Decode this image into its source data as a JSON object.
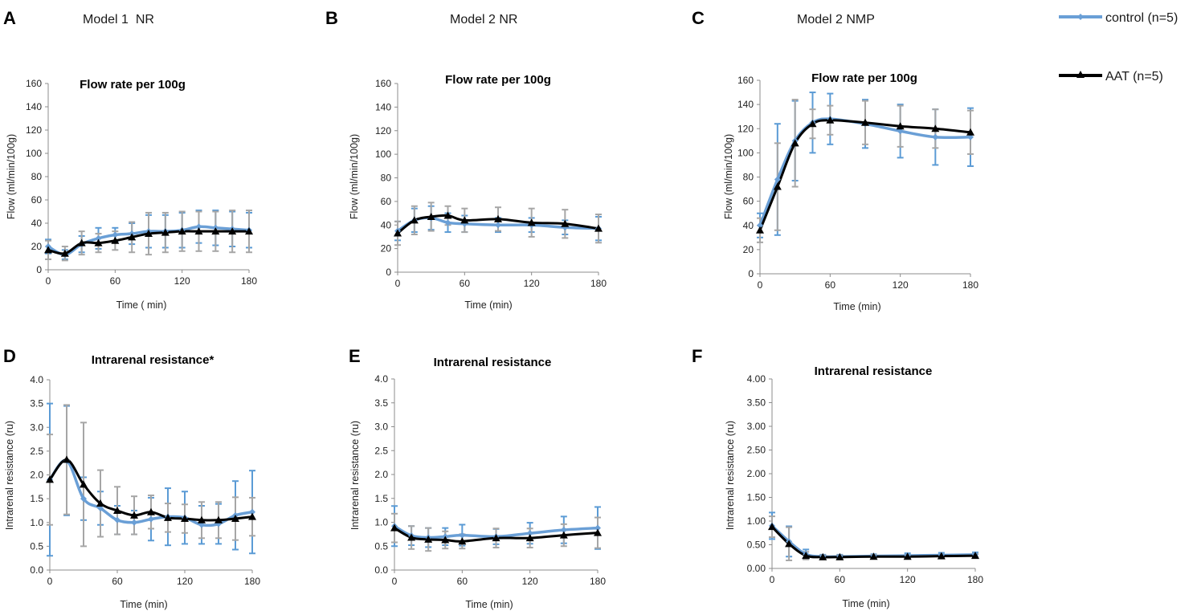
{
  "colors": {
    "control": "#6a9fd6",
    "aat": "#000000",
    "control_err": "#5b9bd5",
    "aat_err": "#a6a6a6",
    "axis": "#8c8c8c"
  },
  "legend": {
    "control": "control (n=5)",
    "aat": "AAT (n=5)"
  },
  "chart_data": [
    {
      "panel": "A",
      "model": "Model 1  NR",
      "type": "line",
      "title": "Flow rate per 100g",
      "xlabel": "Time ( min)",
      "ylabel": "Flow (ml/min/100g)",
      "xlim": [
        0,
        180
      ],
      "xticks": [
        0,
        60,
        120,
        180
      ],
      "ylim": [
        0,
        160
      ],
      "yticks": [
        0,
        20,
        40,
        60,
        80,
        100,
        120,
        140,
        160
      ],
      "ytick_labels": [
        "0",
        "20",
        "40",
        "60",
        "80",
        "100",
        "120",
        "140",
        "160"
      ],
      "series": [
        {
          "name": "control (n=5)",
          "marker": "diamond",
          "x": [
            0,
            15,
            30,
            45,
            60,
            75,
            90,
            105,
            120,
            135,
            150,
            165,
            180
          ],
          "y": [
            20,
            13,
            22,
            27,
            30,
            31,
            33,
            33,
            34,
            37,
            36,
            35,
            34
          ],
          "err": [
            6,
            4,
            7,
            9,
            6,
            9,
            14,
            14,
            15,
            14,
            15,
            15,
            15
          ]
        },
        {
          "name": "AAT (n=5)",
          "marker": "triangle",
          "x": [
            0,
            15,
            30,
            45,
            60,
            75,
            90,
            105,
            120,
            135,
            150,
            165,
            180
          ],
          "y": [
            17,
            14,
            23,
            23,
            25,
            28,
            31,
            32,
            33,
            33,
            33,
            33,
            33
          ],
          "err": [
            8,
            6,
            10,
            8,
            8,
            13,
            18,
            17,
            17,
            17,
            17,
            18,
            18
          ]
        }
      ]
    },
    {
      "panel": "B",
      "model": "Model 2 NR",
      "type": "line",
      "title": "Flow rate per 100g",
      "xlabel": "Time (min)",
      "ylabel": "Flow (ml/min/100g)",
      "xlim": [
        0,
        180
      ],
      "xticks": [
        0,
        60,
        120,
        180
      ],
      "ylim": [
        0,
        160
      ],
      "yticks": [
        0,
        20,
        40,
        60,
        80,
        100,
        120,
        140,
        160
      ],
      "ytick_labels": [
        "0",
        "20",
        "40",
        "60",
        "80",
        "100",
        "120",
        "140",
        "160"
      ],
      "series": [
        {
          "name": "control (n=5)",
          "marker": "diamond",
          "x": [
            0,
            15,
            30,
            45,
            60,
            90,
            120,
            150,
            180
          ],
          "y": [
            35,
            44,
            46,
            42,
            41,
            40,
            40,
            38,
            37
          ],
          "err": [
            8,
            10,
            10,
            8,
            7,
            6,
            6,
            6,
            10
          ]
        },
        {
          "name": "AAT (n=5)",
          "marker": "triangle",
          "x": [
            0,
            15,
            30,
            45,
            60,
            90,
            120,
            150,
            180
          ],
          "y": [
            33,
            44,
            47,
            48,
            44,
            45,
            42,
            41,
            37
          ],
          "err": [
            10,
            12,
            12,
            8,
            10,
            10,
            12,
            12,
            12
          ]
        }
      ]
    },
    {
      "panel": "C",
      "model": "Model 2 NMP",
      "type": "line",
      "title": "Flow rate per 100g",
      "xlabel": "Time (min)",
      "ylabel": "Flow (ml/min/100g)",
      "xlim": [
        0,
        180
      ],
      "xticks": [
        0,
        60,
        120,
        180
      ],
      "ylim": [
        0,
        160
      ],
      "yticks": [
        0,
        20,
        40,
        60,
        80,
        100,
        120,
        140,
        160
      ],
      "ytick_labels": [
        "0",
        "20",
        "40",
        "60",
        "80",
        "100",
        "120",
        "140",
        "160"
      ],
      "series": [
        {
          "name": "control (n=5)",
          "marker": "diamond",
          "x": [
            0,
            15,
            30,
            45,
            60,
            90,
            120,
            150,
            180
          ],
          "y": [
            40,
            78,
            110,
            125,
            128,
            124,
            118,
            113,
            113
          ],
          "err": [
            10,
            46,
            33,
            25,
            21,
            20,
            22,
            23,
            24
          ]
        },
        {
          "name": "AAT (n=5)",
          "marker": "triangle",
          "x": [
            0,
            15,
            30,
            45,
            60,
            90,
            120,
            150,
            180
          ],
          "y": [
            36,
            72,
            108,
            124,
            127,
            125,
            122,
            120,
            117
          ],
          "err": [
            10,
            36,
            36,
            12,
            12,
            18,
            17,
            16,
            18
          ]
        }
      ]
    },
    {
      "panel": "D",
      "model": "",
      "type": "line",
      "title": "Intrarenal resistance*",
      "xlabel": "Time (min)",
      "ylabel": "Intrarenal resistance (ru)",
      "xlim": [
        0,
        180
      ],
      "xticks": [
        0,
        60,
        120,
        180
      ],
      "ylim": [
        0,
        4
      ],
      "yticks": [
        0,
        0.5,
        1,
        1.5,
        2,
        2.5,
        3,
        3.5,
        4
      ],
      "ytick_labels": [
        "0.0",
        "0.5",
        "1.0",
        "1.5",
        "2.0",
        "2.5",
        "3.0",
        "3.5",
        "4.0"
      ],
      "series": [
        {
          "name": "control (n=5)",
          "marker": "diamond",
          "x": [
            0,
            15,
            30,
            45,
            60,
            75,
            90,
            105,
            120,
            135,
            150,
            165,
            180
          ],
          "y": [
            1.9,
            2.3,
            1.5,
            1.3,
            1.05,
            1.0,
            1.07,
            1.12,
            1.1,
            0.95,
            0.97,
            1.15,
            1.22
          ],
          "err": [
            1.6,
            1.15,
            0.45,
            0.35,
            0.3,
            0.25,
            0.45,
            0.6,
            0.55,
            0.4,
            0.42,
            0.72,
            0.87
          ]
        },
        {
          "name": "AAT (n=5)",
          "marker": "triangle",
          "x": [
            0,
            15,
            30,
            45,
            60,
            75,
            90,
            105,
            120,
            135,
            150,
            165,
            180
          ],
          "y": [
            1.9,
            2.32,
            1.8,
            1.4,
            1.25,
            1.15,
            1.22,
            1.1,
            1.08,
            1.05,
            1.05,
            1.08,
            1.12
          ],
          "err": [
            0.95,
            1.15,
            1.3,
            0.7,
            0.5,
            0.4,
            0.35,
            0.3,
            0.3,
            0.38,
            0.38,
            0.45,
            0.4
          ]
        }
      ]
    },
    {
      "panel": "E",
      "model": "",
      "type": "line",
      "title": "Intrarenal resistance",
      "xlabel": "Time (min)",
      "ylabel": "Intrarenal resistance (ru)",
      "xlim": [
        0,
        180
      ],
      "xticks": [
        0,
        60,
        120,
        180
      ],
      "ylim": [
        0,
        4
      ],
      "yticks": [
        0,
        0.5,
        1,
        1.5,
        2,
        2.5,
        3,
        3.5,
        4
      ],
      "ytick_labels": [
        "0.0",
        "0.5",
        "1.0",
        "1.5",
        "2.0",
        "2.5",
        "3.0",
        "3.5",
        "4.0"
      ],
      "series": [
        {
          "name": "control (n=5)",
          "marker": "diamond",
          "x": [
            0,
            15,
            30,
            45,
            60,
            90,
            120,
            150,
            180
          ],
          "y": [
            0.92,
            0.72,
            0.68,
            0.7,
            0.73,
            0.7,
            0.77,
            0.84,
            0.88
          ],
          "err": [
            0.42,
            0.2,
            0.2,
            0.18,
            0.22,
            0.16,
            0.22,
            0.28,
            0.44
          ]
        },
        {
          "name": "AAT (n=5)",
          "marker": "triangle",
          "x": [
            0,
            15,
            30,
            45,
            60,
            90,
            120,
            150,
            180
          ],
          "y": [
            0.88,
            0.68,
            0.64,
            0.63,
            0.6,
            0.67,
            0.67,
            0.73,
            0.78
          ],
          "err": [
            0.3,
            0.24,
            0.24,
            0.18,
            0.15,
            0.2,
            0.2,
            0.23,
            0.32
          ]
        }
      ]
    },
    {
      "panel": "F",
      "model": "",
      "type": "line",
      "title": "Intrarenal resistance",
      "xlabel": "Time (min)",
      "ylabel": "Intrarenal resistance (ru)",
      "xlim": [
        0,
        180
      ],
      "xticks": [
        0,
        60,
        120,
        180
      ],
      "ylim": [
        0,
        4
      ],
      "yticks": [
        0,
        0.5,
        1,
        1.5,
        2,
        2.5,
        3,
        3.5,
        4
      ],
      "ytick_labels": [
        "0.00",
        "0.50",
        "1.00",
        "1.50",
        "2.00",
        "2.50",
        "3.00",
        "3.50",
        "4.00"
      ],
      "series": [
        {
          "name": "control (n=5)",
          "marker": "diamond",
          "x": [
            0,
            15,
            30,
            45,
            60,
            90,
            120,
            150,
            180
          ],
          "y": [
            0.9,
            0.57,
            0.3,
            0.25,
            0.25,
            0.26,
            0.27,
            0.28,
            0.29
          ],
          "err": [
            0.28,
            0.32,
            0.1,
            0.04,
            0.04,
            0.04,
            0.05,
            0.05,
            0.05
          ]
        },
        {
          "name": "AAT (n=5)",
          "marker": "triangle",
          "x": [
            0,
            15,
            30,
            45,
            60,
            90,
            120,
            150,
            180
          ],
          "y": [
            0.88,
            0.52,
            0.27,
            0.24,
            0.24,
            0.25,
            0.25,
            0.26,
            0.27
          ],
          "err": [
            0.22,
            0.35,
            0.08,
            0.04,
            0.04,
            0.04,
            0.04,
            0.04,
            0.04
          ]
        }
      ]
    }
  ]
}
